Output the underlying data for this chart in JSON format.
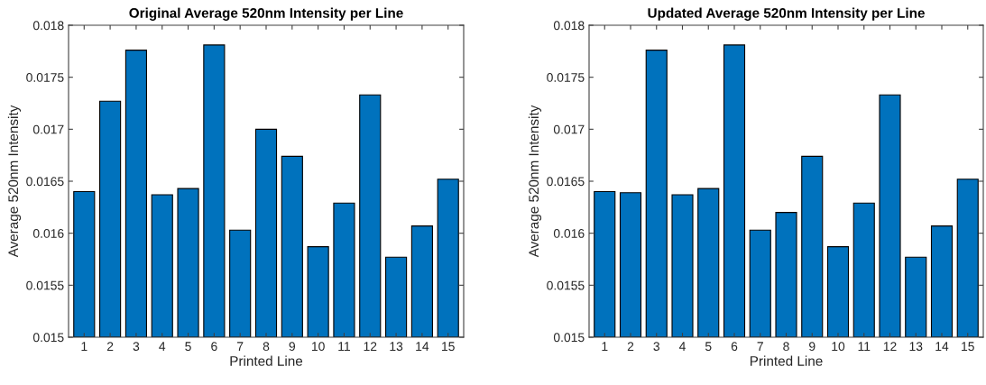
{
  "chart_data": [
    {
      "type": "bar",
      "title": "Original Average 520nm Intensity per Line",
      "xlabel": "Printed Line",
      "ylabel": "Average 520nm Intensity",
      "categories": [
        "1",
        "2",
        "3",
        "4",
        "5",
        "6",
        "7",
        "8",
        "9",
        "10",
        "11",
        "12",
        "13",
        "14",
        "15"
      ],
      "values": [
        0.0164,
        0.01727,
        0.01776,
        0.01637,
        0.01643,
        0.01781,
        0.01603,
        0.017,
        0.01674,
        0.01587,
        0.01629,
        0.01733,
        0.01577,
        0.01607,
        0.01652
      ],
      "color": "#0072bd",
      "ylim": [
        0.015,
        0.018
      ],
      "yticks": [
        0.015,
        0.0155,
        0.016,
        0.0165,
        0.017,
        0.0175,
        0.018
      ],
      "grid": false
    },
    {
      "type": "bar",
      "title": "Updated Average 520nm Intensity per Line",
      "xlabel": "Printed Line",
      "ylabel": "Average 520nm Intensity",
      "categories": [
        "1",
        "2",
        "3",
        "4",
        "5",
        "6",
        "7",
        "8",
        "9",
        "10",
        "11",
        "12",
        "13",
        "14",
        "15"
      ],
      "values": [
        0.0164,
        0.01639,
        0.01776,
        0.01637,
        0.01643,
        0.01781,
        0.01603,
        0.0162,
        0.01674,
        0.01587,
        0.01629,
        0.01733,
        0.01577,
        0.01607,
        0.01652
      ],
      "color": "#0072bd",
      "ylim": [
        0.015,
        0.018
      ],
      "yticks": [
        0.015,
        0.0155,
        0.016,
        0.0165,
        0.017,
        0.0175,
        0.018
      ],
      "grid": false
    }
  ]
}
